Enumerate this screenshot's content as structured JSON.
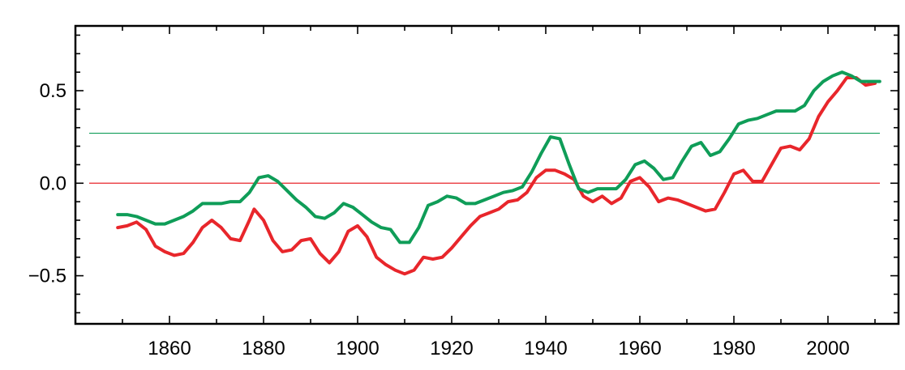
{
  "chart_data": {
    "type": "line",
    "title": "",
    "xlabel": "",
    "ylabel": "",
    "xlim": [
      1840,
      2015
    ],
    "ylim": [
      -0.76,
      0.85
    ],
    "xticks": [
      1860,
      1880,
      1900,
      1920,
      1940,
      1960,
      1980,
      2000
    ],
    "xtick_labels": [
      "1860",
      "1880",
      "1900",
      "1920",
      "1940",
      "1960",
      "1980",
      "2000"
    ],
    "yticks": [
      -0.5,
      0.0,
      0.5
    ],
    "ytick_labels": [
      "−0.5",
      "0.0",
      "0.5"
    ],
    "grid": false,
    "reference_lines": [
      {
        "y": 0.0,
        "color": "#e8262b"
      },
      {
        "y": 0.27,
        "color": "#0f9d58"
      }
    ],
    "series": [
      {
        "color": "#e8262b",
        "x": [
          1849,
          1851,
          1853,
          1855,
          1857,
          1859,
          1861,
          1863,
          1865,
          1867,
          1869,
          1871,
          1873,
          1875,
          1877,
          1878,
          1880,
          1882,
          1884,
          1886,
          1888,
          1890,
          1892,
          1894,
          1896,
          1898,
          1900,
          1902,
          1904,
          1906,
          1908,
          1910,
          1912,
          1914,
          1916,
          1918,
          1920,
          1922,
          1924,
          1926,
          1928,
          1930,
          1932,
          1934,
          1936,
          1938,
          1940,
          1942,
          1944,
          1946,
          1948,
          1950,
          1952,
          1954,
          1956,
          1958,
          1960,
          1962,
          1964,
          1966,
          1968,
          1970,
          1972,
          1974,
          1976,
          1978,
          1980,
          1982,
          1984,
          1986,
          1988,
          1990,
          1992,
          1994,
          1996,
          1998,
          2000,
          2002,
          2004,
          2006,
          2008,
          2010
        ],
        "y": [
          -0.24,
          -0.23,
          -0.21,
          -0.25,
          -0.34,
          -0.37,
          -0.39,
          -0.38,
          -0.32,
          -0.24,
          -0.2,
          -0.24,
          -0.3,
          -0.31,
          -0.2,
          -0.14,
          -0.2,
          -0.31,
          -0.37,
          -0.36,
          -0.31,
          -0.3,
          -0.38,
          -0.43,
          -0.37,
          -0.26,
          -0.23,
          -0.29,
          -0.4,
          -0.44,
          -0.47,
          -0.49,
          -0.47,
          -0.4,
          -0.41,
          -0.4,
          -0.35,
          -0.29,
          -0.23,
          -0.18,
          -0.16,
          -0.14,
          -0.1,
          -0.09,
          -0.05,
          0.03,
          0.07,
          0.07,
          0.05,
          0.02,
          -0.07,
          -0.1,
          -0.07,
          -0.11,
          -0.08,
          0.01,
          0.03,
          -0.02,
          -0.1,
          -0.08,
          -0.09,
          -0.11,
          -0.13,
          -0.15,
          -0.14,
          -0.05,
          0.05,
          0.07,
          0.01,
          0.01,
          0.1,
          0.19,
          0.2,
          0.18,
          0.24,
          0.36,
          0.44,
          0.5,
          0.57,
          0.57,
          0.53,
          0.54
        ]
      },
      {
        "color": "#0f9d58",
        "x": [
          1849,
          1851,
          1853,
          1855,
          1857,
          1859,
          1861,
          1863,
          1865,
          1867,
          1869,
          1871,
          1873,
          1875,
          1877,
          1879,
          1881,
          1883,
          1885,
          1887,
          1889,
          1891,
          1893,
          1895,
          1897,
          1899,
          1901,
          1903,
          1905,
          1907,
          1909,
          1911,
          1913,
          1915,
          1917,
          1919,
          1921,
          1923,
          1925,
          1927,
          1929,
          1931,
          1933,
          1935,
          1937,
          1939,
          1941,
          1943,
          1945,
          1947,
          1949,
          1951,
          1953,
          1955,
          1957,
          1959,
          1961,
          1963,
          1965,
          1967,
          1969,
          1971,
          1973,
          1975,
          1977,
          1979,
          1981,
          1983,
          1985,
          1987,
          1989,
          1991,
          1993,
          1995,
          1997,
          1999,
          2001,
          2003,
          2005,
          2007,
          2009,
          2011
        ],
        "y": [
          -0.17,
          -0.17,
          -0.18,
          -0.2,
          -0.22,
          -0.22,
          -0.2,
          -0.18,
          -0.15,
          -0.11,
          -0.11,
          -0.11,
          -0.1,
          -0.1,
          -0.05,
          0.03,
          0.04,
          0.01,
          -0.04,
          -0.09,
          -0.13,
          -0.18,
          -0.19,
          -0.16,
          -0.11,
          -0.13,
          -0.17,
          -0.21,
          -0.24,
          -0.25,
          -0.32,
          -0.32,
          -0.24,
          -0.12,
          -0.1,
          -0.07,
          -0.08,
          -0.11,
          -0.11,
          -0.09,
          -0.07,
          -0.05,
          -0.04,
          -0.02,
          0.06,
          0.16,
          0.25,
          0.24,
          0.1,
          -0.03,
          -0.05,
          -0.03,
          -0.03,
          -0.03,
          0.02,
          0.1,
          0.12,
          0.08,
          0.02,
          0.03,
          0.12,
          0.2,
          0.22,
          0.15,
          0.17,
          0.24,
          0.32,
          0.34,
          0.35,
          0.37,
          0.39,
          0.39,
          0.39,
          0.42,
          0.5,
          0.55,
          0.58,
          0.6,
          0.58,
          0.55,
          0.55,
          0.55
        ]
      }
    ]
  }
}
